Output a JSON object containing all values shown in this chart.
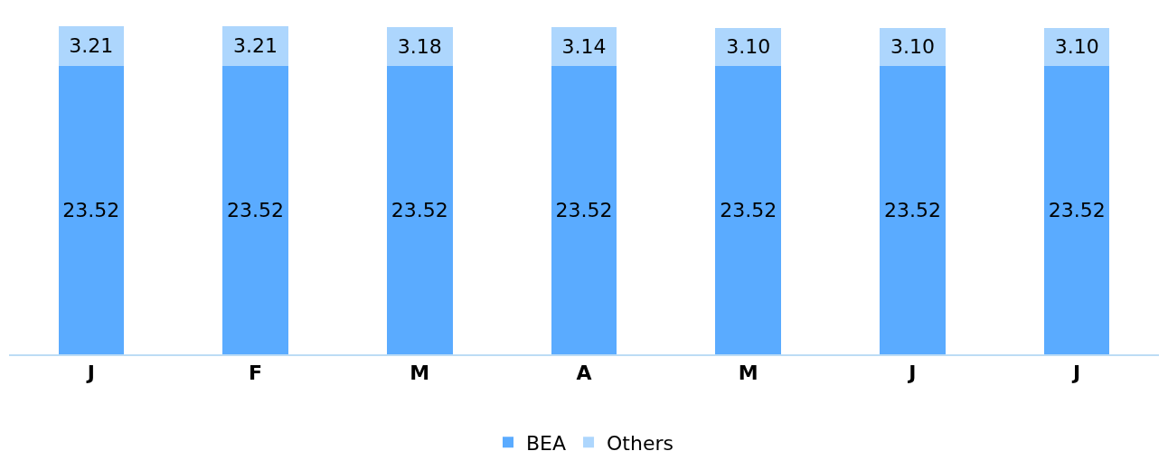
{
  "chart_data": {
    "type": "bar",
    "stacked": true,
    "legend": "bottom",
    "categories": [
      "J",
      "F",
      "M",
      "A",
      "M",
      "J",
      "J"
    ],
    "series": [
      {
        "name": "BEA",
        "color": "#5aabff",
        "values": [
          23.52,
          23.52,
          23.52,
          23.52,
          23.52,
          23.52,
          23.52
        ],
        "value_labels": [
          "23.52",
          "23.52",
          "23.52",
          "23.52",
          "23.52",
          "23.52",
          "23.52"
        ]
      },
      {
        "name": "Others",
        "color": "#add6fd",
        "values": [
          3.21,
          3.21,
          3.18,
          3.14,
          3.1,
          3.1,
          3.1
        ],
        "value_labels": [
          "3.21",
          "3.21",
          "3.18",
          "3.14",
          "3.10",
          "3.10",
          "3.10"
        ]
      }
    ]
  }
}
